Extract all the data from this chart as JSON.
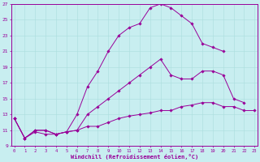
{
  "xlabel": "Windchill (Refroidissement éolien,°C)",
  "bg_color": "#c8eef0",
  "line_color": "#990099",
  "grid_color": "#aadddd",
  "xlim": [
    -0.5,
    23.5
  ],
  "ylim": [
    9,
    27
  ],
  "xticks": [
    0,
    1,
    2,
    3,
    4,
    5,
    6,
    7,
    8,
    9,
    10,
    11,
    12,
    13,
    14,
    15,
    16,
    17,
    18,
    19,
    20,
    21,
    22,
    23
  ],
  "yticks": [
    9,
    11,
    13,
    15,
    17,
    19,
    21,
    23,
    25,
    27
  ],
  "curve1_x": [
    0,
    1,
    2,
    3,
    4,
    5,
    6,
    7,
    8,
    9,
    10,
    11,
    12,
    13,
    14,
    15,
    16,
    17,
    18,
    19,
    20
  ],
  "curve1_y": [
    12.5,
    10.0,
    11.0,
    11.0,
    10.5,
    10.8,
    13.0,
    16.5,
    18.5,
    21.0,
    23.0,
    24.0,
    24.5,
    26.5,
    27.0,
    26.5,
    25.5,
    24.5,
    22.0,
    21.5,
    21.0
  ],
  "curve2_x": [
    0,
    1,
    2,
    3,
    4,
    5,
    6,
    7,
    8,
    9,
    10,
    11,
    12,
    13,
    14,
    15,
    16,
    17,
    18,
    19,
    20,
    21,
    22
  ],
  "curve2_y": [
    12.5,
    10.0,
    11.0,
    11.0,
    10.5,
    10.8,
    11.0,
    13.0,
    14.0,
    15.0,
    16.0,
    17.0,
    18.0,
    19.0,
    20.0,
    18.0,
    17.5,
    17.5,
    18.5,
    18.5,
    18.0,
    15.0,
    14.5
  ],
  "curve3_x": [
    0,
    1,
    2,
    3,
    4,
    5,
    6,
    7,
    8,
    9,
    10,
    11,
    12,
    13,
    14,
    15,
    16,
    17,
    18,
    19,
    20,
    21,
    22,
    23
  ],
  "curve3_y": [
    12.5,
    10.0,
    10.8,
    10.5,
    10.5,
    10.8,
    11.0,
    11.5,
    11.5,
    12.0,
    12.5,
    12.8,
    13.0,
    13.2,
    13.5,
    13.5,
    14.0,
    14.2,
    14.5,
    14.5,
    14.0,
    14.0,
    13.5,
    13.5
  ]
}
